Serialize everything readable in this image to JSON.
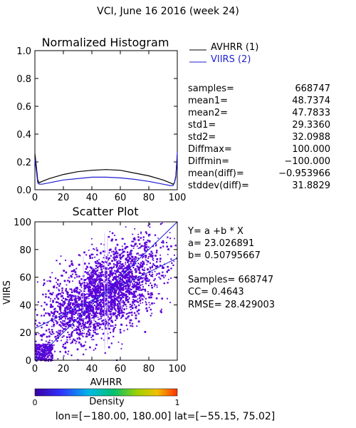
{
  "header": {
    "title": "VCI,  June 16 2016 (week 24)"
  },
  "histogram": {
    "title": "Normalized Histogram",
    "x_ticks": [
      "0",
      "20",
      "40",
      "60",
      "80",
      "100"
    ],
    "y_ticks": [
      "0.0",
      "0.2",
      "0.4",
      "0.6",
      "0.8",
      "1.0"
    ],
    "legend": [
      {
        "label": "AVHRR (1)",
        "color": "#000000"
      },
      {
        "label": "VIIRS (2)",
        "color": "#1f1fd0"
      }
    ]
  },
  "stats": [
    {
      "label": "samples=",
      "value": "668747"
    },
    {
      "label": "mean1=",
      "value": "48.7374"
    },
    {
      "label": "mean2=",
      "value": "47.7833"
    },
    {
      "label": "std1=",
      "value": "29.3360"
    },
    {
      "label": "std2=",
      "value": "32.0988"
    },
    {
      "label": "Diffmax=",
      "value": "100.000"
    },
    {
      "label": "Diffmin=",
      "value": "−100.000"
    },
    {
      "label": "mean(diff)=",
      "value": "−0.953966"
    },
    {
      "label": "stddev(diff)=",
      "value": "31.8829"
    }
  ],
  "scatter": {
    "title": "Scatter Plot",
    "xlabel": "AVHRR",
    "ylabel": "VIIRS",
    "x_ticks": [
      "0",
      "20",
      "40",
      "60",
      "80",
      "100"
    ],
    "y_ticks": [
      "0",
      "20",
      "40",
      "60",
      "80",
      "100"
    ]
  },
  "regression": {
    "equation": "Y= a +b * X",
    "a": "a= 23.026891",
    "b": "b= 0.50795667",
    "samples": "Samples= 668747",
    "cc": "CC=  0.4643",
    "rmse": "RMSE= 28.429003"
  },
  "colorbar": {
    "label": "Density",
    "min_label": "0",
    "max_label": "1"
  },
  "footer": {
    "text": "lon=[−180.00, 180.00] lat=[−55.15, 75.02]"
  },
  "colors": {
    "avhrr": "#000000",
    "viirs": "#1f1fd0",
    "scatter": "#5a00d8",
    "fit_line": "#1f1fd0"
  },
  "chart_data": [
    {
      "type": "line",
      "title": "Normalized Histogram",
      "xlabel": "",
      "ylabel": "",
      "xlim": [
        0,
        100
      ],
      "ylim": [
        0,
        1.0
      ],
      "x": [
        0,
        1,
        2,
        3,
        5,
        10,
        20,
        30,
        40,
        50,
        60,
        70,
        80,
        90,
        95,
        97,
        98,
        99,
        100
      ],
      "series": [
        {
          "name": "AVHRR (1)",
          "values": [
            0.26,
            0.17,
            0.07,
            0.05,
            0.06,
            0.08,
            0.11,
            0.13,
            0.14,
            0.145,
            0.14,
            0.12,
            0.1,
            0.07,
            0.05,
            0.04,
            0.05,
            0.1,
            0.25
          ]
        },
        {
          "name": "VIIRS (2)",
          "values": [
            0.22,
            0.14,
            0.05,
            0.04,
            0.04,
            0.05,
            0.07,
            0.08,
            0.09,
            0.09,
            0.085,
            0.075,
            0.06,
            0.04,
            0.03,
            0.03,
            0.05,
            0.09,
            0.27
          ]
        }
      ]
    },
    {
      "type": "scatter",
      "title": "Scatter Plot",
      "xlabel": "AVHRR",
      "ylabel": "VIIRS",
      "xlim": [
        0,
        100
      ],
      "ylim": [
        0,
        100
      ],
      "n_samples": 668747,
      "fit": {
        "a": 23.026891,
        "b": 0.50795667
      },
      "cc": 0.4643,
      "rmse": 28.429003
    }
  ]
}
